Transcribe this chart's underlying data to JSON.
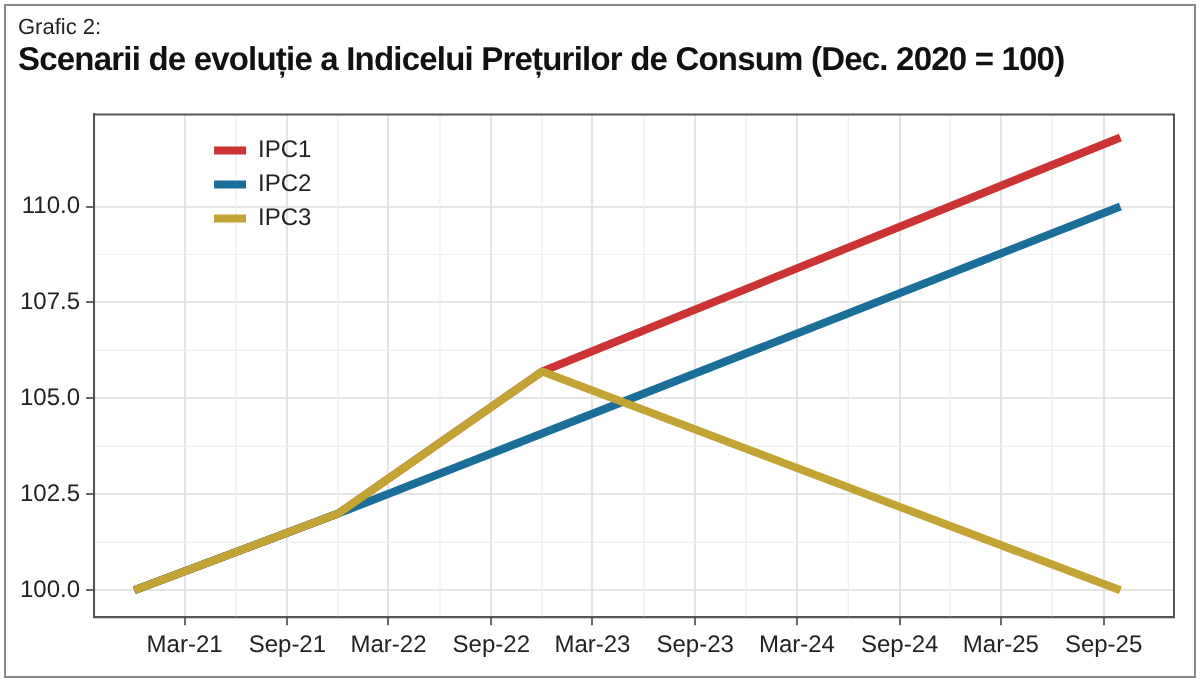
{
  "chart_data": {
    "type": "line",
    "subtitle": "Grafic 2:",
    "title": "Scenarii de evoluție a Indicelui Prețurilor de Consum (Dec. 2020 = 100)",
    "series": [
      {
        "name": "IPC1",
        "color": "#cc3333",
        "x": [
          "2020-12",
          "2021-12",
          "2022-12",
          "2025-10"
        ],
        "values": [
          100,
          102,
          105.7,
          111.8
        ]
      },
      {
        "name": "IPC2",
        "color": "#1a6e99",
        "x": [
          "2020-12",
          "2021-12",
          "2025-10"
        ],
        "values": [
          100,
          102,
          110
        ]
      },
      {
        "name": "IPC3",
        "color": "#c4a335",
        "x": [
          "2020-12",
          "2021-12",
          "2022-12",
          "2025-10"
        ],
        "values": [
          100,
          102,
          105.7,
          100
        ]
      }
    ],
    "xlim": [
      "2020-09-20",
      "2026-01-05"
    ],
    "xticks": [
      {
        "value": "2021-03",
        "label": "Mar-21"
      },
      {
        "value": "2021-09",
        "label": "Sep-21"
      },
      {
        "value": "2022-03",
        "label": "Mar-22"
      },
      {
        "value": "2022-09",
        "label": "Sep-22"
      },
      {
        "value": "2023-03",
        "label": "Mar-23"
      },
      {
        "value": "2023-09",
        "label": "Sep-23"
      },
      {
        "value": "2024-03",
        "label": "Mar-24"
      },
      {
        "value": "2024-09",
        "label": "Sep-24"
      },
      {
        "value": "2025-03",
        "label": "Mar-25"
      },
      {
        "value": "2025-09",
        "label": "Sep-25"
      }
    ],
    "ylim": [
      99.3,
      112.4
    ],
    "yticks": [
      {
        "value": 100,
        "label": "100.0"
      },
      {
        "value": 102.5,
        "label": "102.5"
      },
      {
        "value": 105,
        "label": "105.0"
      },
      {
        "value": 107.5,
        "label": "107.5"
      },
      {
        "value": 110,
        "label": "110.0"
      }
    ],
    "grid": true,
    "legend": "top left",
    "marker": "none",
    "line_style": "solid"
  }
}
